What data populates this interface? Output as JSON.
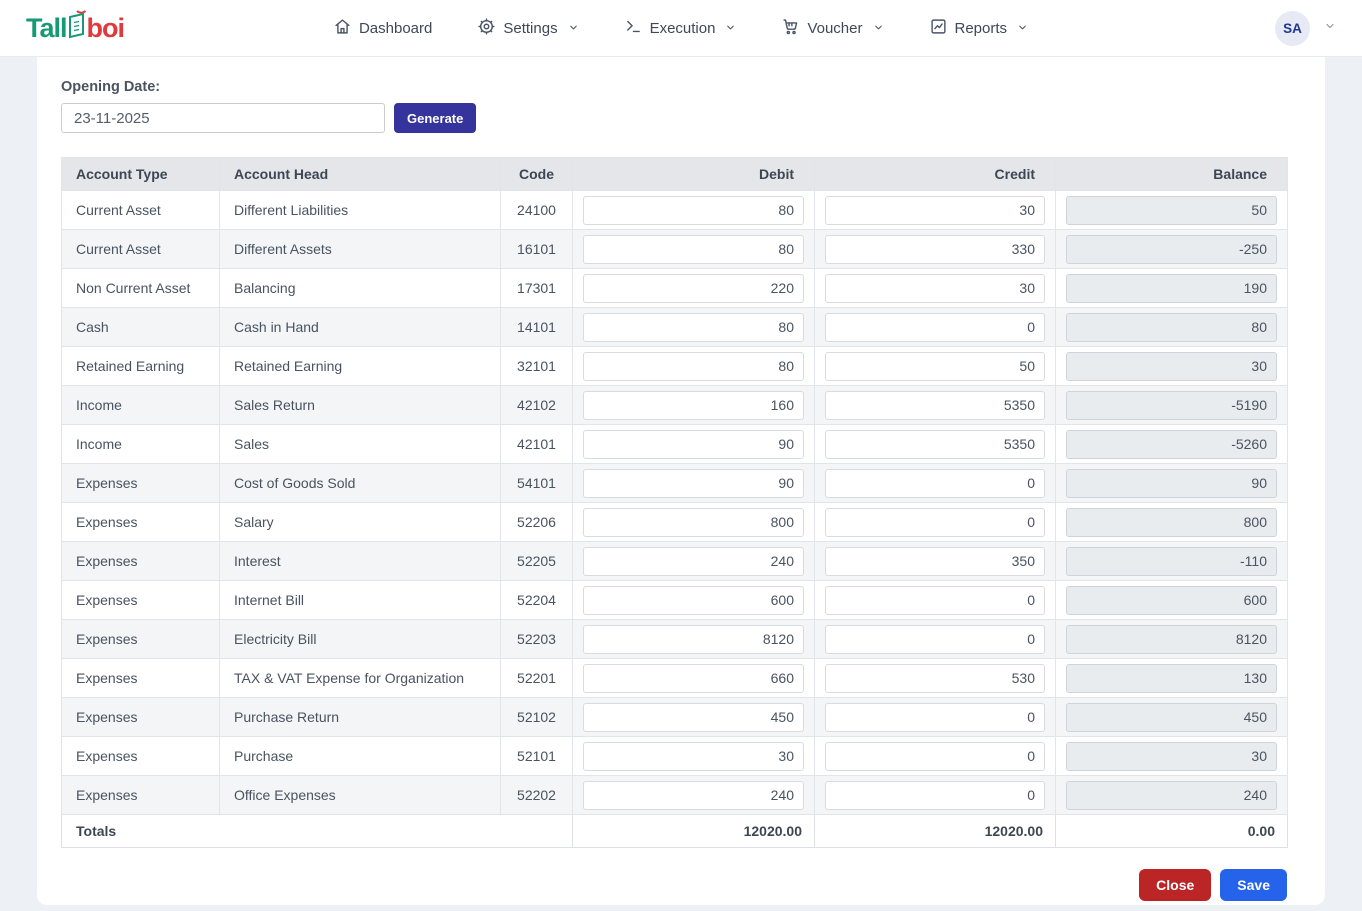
{
  "brand": {
    "part1": "Tall",
    "part2": "boi",
    "green": "#169a74",
    "red": "#e03a3e"
  },
  "nav": {
    "items": [
      {
        "label": "Dashboard",
        "icon": "home-icon",
        "has_dropdown": false
      },
      {
        "label": "Settings",
        "icon": "gear-icon",
        "has_dropdown": true
      },
      {
        "label": "Execution",
        "icon": "terminal-icon",
        "has_dropdown": true
      },
      {
        "label": "Voucher",
        "icon": "cart-icon",
        "has_dropdown": true
      },
      {
        "label": "Reports",
        "icon": "chart-icon",
        "has_dropdown": true
      }
    ],
    "avatar_initials": "SA"
  },
  "form": {
    "label": "Opening Date:",
    "date_value": "23-11-2025",
    "generate_label": "Generate"
  },
  "table": {
    "headers": [
      "Account Type",
      "Account Head",
      "Code",
      "Debit",
      "Credit",
      "Balance"
    ],
    "rows": [
      {
        "account_type": "Current Asset",
        "account_head": "Different Liabilities",
        "code": "24100",
        "debit": "80",
        "credit": "30",
        "balance": "50"
      },
      {
        "account_type": "Current Asset",
        "account_head": "Different Assets",
        "code": "16101",
        "debit": "80",
        "credit": "330",
        "balance": "-250"
      },
      {
        "account_type": "Non Current Asset",
        "account_head": "Balancing",
        "code": "17301",
        "debit": "220",
        "credit": "30",
        "balance": "190"
      },
      {
        "account_type": "Cash",
        "account_head": "Cash in Hand",
        "code": "14101",
        "debit": "80",
        "credit": "0",
        "balance": "80"
      },
      {
        "account_type": "Retained Earning",
        "account_head": "Retained Earning",
        "code": "32101",
        "debit": "80",
        "credit": "50",
        "balance": "30"
      },
      {
        "account_type": "Income",
        "account_head": "Sales Return",
        "code": "42102",
        "debit": "160",
        "credit": "5350",
        "balance": "-5190"
      },
      {
        "account_type": "Income",
        "account_head": "Sales",
        "code": "42101",
        "debit": "90",
        "credit": "5350",
        "balance": "-5260"
      },
      {
        "account_type": "Expenses",
        "account_head": "Cost of Goods Sold",
        "code": "54101",
        "debit": "90",
        "credit": "0",
        "balance": "90"
      },
      {
        "account_type": "Expenses",
        "account_head": "Salary",
        "code": "52206",
        "debit": "800",
        "credit": "0",
        "balance": "800"
      },
      {
        "account_type": "Expenses",
        "account_head": "Interest",
        "code": "52205",
        "debit": "240",
        "credit": "350",
        "balance": "-110"
      },
      {
        "account_type": "Expenses",
        "account_head": "Internet Bill",
        "code": "52204",
        "debit": "600",
        "credit": "0",
        "balance": "600"
      },
      {
        "account_type": "Expenses",
        "account_head": "Electricity Bill",
        "code": "52203",
        "debit": "8120",
        "credit": "0",
        "balance": "8120"
      },
      {
        "account_type": "Expenses",
        "account_head": "TAX & VAT Expense for Organization",
        "code": "52201",
        "debit": "660",
        "credit": "530",
        "balance": "130"
      },
      {
        "account_type": "Expenses",
        "account_head": "Purchase Return",
        "code": "52102",
        "debit": "450",
        "credit": "0",
        "balance": "450"
      },
      {
        "account_type": "Expenses",
        "account_head": "Purchase",
        "code": "52101",
        "debit": "30",
        "credit": "0",
        "balance": "30"
      },
      {
        "account_type": "Expenses",
        "account_head": "Office Expenses",
        "code": "52202",
        "debit": "240",
        "credit": "0",
        "balance": "240"
      }
    ],
    "totals_label": "Totals",
    "totals": {
      "debit": "12020.00",
      "credit": "12020.00",
      "balance": "0.00"
    }
  },
  "actions": {
    "close_label": "Close",
    "save_label": "Save"
  },
  "colors": {
    "generate_button": "#34349c",
    "close_button": "#bb2525",
    "save_button": "#2563eb",
    "header_bg": "#e4e6e9",
    "stripe_bg": "#f3f5f7",
    "disabled_input_bg": "#e9ecef"
  }
}
